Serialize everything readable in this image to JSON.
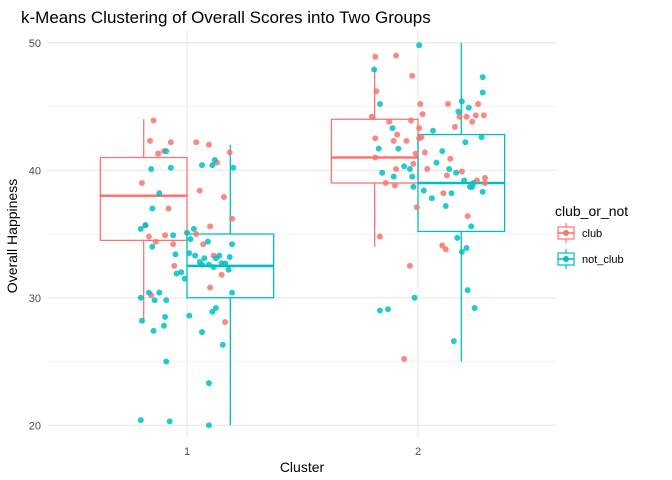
{
  "chart_data": {
    "type": "boxplot+jitter",
    "title": "k-Means Clustering of Overall Scores into Two Groups",
    "xlabel": "Cluster",
    "ylabel": "Overall Happiness",
    "categories": [
      "1",
      "2"
    ],
    "ylim": [
      19,
      51
    ],
    "yticks": [
      20,
      30,
      40,
      50
    ],
    "grid": true,
    "legend": {
      "title": "club_or_not",
      "position": "right",
      "entries": [
        "club",
        "not_club"
      ]
    },
    "colors": {
      "club": "#f8766d",
      "not_club": "#00bfc4"
    },
    "series": [
      {
        "name": "club",
        "boxes": [
          {
            "cluster": "1",
            "min": 28,
            "q1": 34.5,
            "median": 38,
            "q3": 41,
            "max": 44
          },
          {
            "cluster": "2",
            "min": 34,
            "q1": 39,
            "median": 41,
            "q3": 44,
            "max": 48
          }
        ],
        "points": [
          {
            "cluster": "1",
            "jitter": -0.39,
            "y": 39
          },
          {
            "cluster": "1",
            "jitter": -0.32,
            "y": 42.3
          },
          {
            "cluster": "1",
            "jitter": -0.29,
            "y": 43.9
          },
          {
            "cluster": "1",
            "jitter": -0.25,
            "y": 41.3
          },
          {
            "cluster": "1",
            "jitter": -0.2,
            "y": 41.5
          },
          {
            "cluster": "1",
            "jitter": -0.14,
            "y": 42.2
          },
          {
            "cluster": "1",
            "jitter": -0.36,
            "y": 35.7
          },
          {
            "cluster": "1",
            "jitter": -0.27,
            "y": 34.4
          },
          {
            "cluster": "1",
            "jitter": -0.12,
            "y": 34.2
          },
          {
            "cluster": "1",
            "jitter": -0.16,
            "y": 37
          },
          {
            "cluster": "1",
            "jitter": -0.33,
            "y": 34.8
          },
          {
            "cluster": "1",
            "jitter": -0.31,
            "y": 30.2
          },
          {
            "cluster": "1",
            "jitter": -0.19,
            "y": 34.9
          },
          {
            "cluster": "1",
            "jitter": -0.11,
            "y": 32.5
          },
          {
            "cluster": "1",
            "jitter": 0.08,
            "y": 42.2
          },
          {
            "cluster": "1",
            "jitter": 0.19,
            "y": 42
          },
          {
            "cluster": "1",
            "jitter": 0.11,
            "y": 38.4
          },
          {
            "cluster": "1",
            "jitter": 0.26,
            "y": 40.6
          },
          {
            "cluster": "1",
            "jitter": 0.37,
            "y": 41.4
          },
          {
            "cluster": "1",
            "jitter": 0.32,
            "y": 37.9
          },
          {
            "cluster": "1",
            "jitter": 0.39,
            "y": 36.2
          },
          {
            "cluster": "1",
            "jitter": 0.2,
            "y": 35.6
          },
          {
            "cluster": "1",
            "jitter": 0.14,
            "y": 34.2
          },
          {
            "cluster": "1",
            "jitter": 0.08,
            "y": 35
          },
          {
            "cluster": "1",
            "jitter": 0.23,
            "y": 33.3
          },
          {
            "cluster": "1",
            "jitter": 0.3,
            "y": 31.8
          },
          {
            "cluster": "1",
            "jitter": 0.2,
            "y": 30.8
          },
          {
            "cluster": "1",
            "jitter": 0.33,
            "y": 28.1
          },
          {
            "cluster": "2",
            "jitter": -0.37,
            "y": 41
          },
          {
            "cluster": "2",
            "jitter": -0.37,
            "y": 42.5
          },
          {
            "cluster": "2",
            "jitter": -0.4,
            "y": 44.2
          },
          {
            "cluster": "2",
            "jitter": -0.36,
            "y": 46.2
          },
          {
            "cluster": "2",
            "jitter": -0.37,
            "y": 48.9
          },
          {
            "cluster": "2",
            "jitter": -0.33,
            "y": 34.8
          },
          {
            "cluster": "2",
            "jitter": -0.28,
            "y": 39
          },
          {
            "cluster": "2",
            "jitter": -0.2,
            "y": 38.8
          },
          {
            "cluster": "2",
            "jitter": -0.25,
            "y": 43.8
          },
          {
            "cluster": "2",
            "jitter": -0.21,
            "y": 42.3
          },
          {
            "cluster": "2",
            "jitter": -0.18,
            "y": 42.8
          },
          {
            "cluster": "2",
            "jitter": -0.19,
            "y": 49
          },
          {
            "cluster": "2",
            "jitter": -0.05,
            "y": 47.4
          },
          {
            "cluster": "2",
            "jitter": -0.19,
            "y": 40.1
          },
          {
            "cluster": "2",
            "jitter": -0.1,
            "y": 42.3
          },
          {
            "cluster": "2",
            "jitter": -0.06,
            "y": 43.9
          },
          {
            "cluster": "2",
            "jitter": -0.01,
            "y": 37.1
          },
          {
            "cluster": "2",
            "jitter": -0.02,
            "y": 41.3
          },
          {
            "cluster": "2",
            "jitter": -0.04,
            "y": 40.5
          },
          {
            "cluster": "2",
            "jitter": 0.01,
            "y": 42.5
          },
          {
            "cluster": "2",
            "jitter": 0.02,
            "y": 45.2
          },
          {
            "cluster": "2",
            "jitter": 0.04,
            "y": 44.4
          },
          {
            "cluster": "2",
            "jitter": 0.01,
            "y": 43.3
          },
          {
            "cluster": "2",
            "jitter": 0.03,
            "y": 42.6
          },
          {
            "cluster": "2",
            "jitter": -0.12,
            "y": 25.2
          },
          {
            "cluster": "2",
            "jitter": -0.07,
            "y": 32.5
          },
          {
            "cluster": "2",
            "jitter": 0.06,
            "y": 41.4
          },
          {
            "cluster": "2",
            "jitter": 0.08,
            "y": 40.1
          },
          {
            "cluster": "2",
            "jitter": 0.21,
            "y": 34.1
          },
          {
            "cluster": "2",
            "jitter": 0.22,
            "y": 38.2
          },
          {
            "cluster": "2",
            "jitter": 0.25,
            "y": 39.6
          },
          {
            "cluster": "2",
            "jitter": 0.28,
            "y": 40.9
          },
          {
            "cluster": "2",
            "jitter": 0.32,
            "y": 43.4
          },
          {
            "cluster": "2",
            "jitter": 0.26,
            "y": 45.2
          },
          {
            "cluster": "2",
            "jitter": 0.36,
            "y": 44.2
          },
          {
            "cluster": "2",
            "jitter": 0.38,
            "y": 39.9
          },
          {
            "cluster": "2",
            "jitter": 0.24,
            "y": 33.8
          },
          {
            "cluster": "2",
            "jitter": 0.43,
            "y": 36.4
          },
          {
            "cluster": "2",
            "jitter": 0.51,
            "y": 39.2
          },
          {
            "cluster": "2",
            "jitter": 0.42,
            "y": 44.2
          },
          {
            "cluster": "2",
            "jitter": 0.47,
            "y": 43.8
          },
          {
            "cluster": "2",
            "jitter": 0.5,
            "y": 44.3
          },
          {
            "cluster": "2",
            "jitter": 0.52,
            "y": 45.2
          },
          {
            "cluster": "2",
            "jitter": 0.57,
            "y": 44.3
          },
          {
            "cluster": "2",
            "jitter": 0.58,
            "y": 39.4
          },
          {
            "cluster": "2",
            "jitter": 0.58,
            "y": 39
          }
        ]
      },
      {
        "name": "not_club",
        "boxes": [
          {
            "cluster": "1",
            "min": 20,
            "q1": 30,
            "median": 32.5,
            "q3": 35,
            "max": 42
          },
          {
            "cluster": "2",
            "min": 25,
            "q1": 35.2,
            "median": 39,
            "q3": 42.8,
            "max": 50
          }
        ],
        "points": [
          {
            "cluster": "1",
            "jitter": -0.4,
            "y": 35.4
          },
          {
            "cluster": "1",
            "jitter": -0.36,
            "y": 35.7
          },
          {
            "cluster": "1",
            "jitter": -0.3,
            "y": 34
          },
          {
            "cluster": "1",
            "jitter": -0.4,
            "y": 30
          },
          {
            "cluster": "1",
            "jitter": -0.33,
            "y": 30.4
          },
          {
            "cluster": "1",
            "jitter": -0.28,
            "y": 29.8
          },
          {
            "cluster": "1",
            "jitter": -0.24,
            "y": 30.4
          },
          {
            "cluster": "1",
            "jitter": -0.18,
            "y": 29.8
          },
          {
            "cluster": "1",
            "jitter": -0.39,
            "y": 28.2
          },
          {
            "cluster": "1",
            "jitter": -0.29,
            "y": 27.4
          },
          {
            "cluster": "1",
            "jitter": -0.2,
            "y": 27.8
          },
          {
            "cluster": "1",
            "jitter": -0.19,
            "y": 28.5
          },
          {
            "cluster": "1",
            "jitter": -0.4,
            "y": 20.4
          },
          {
            "cluster": "1",
            "jitter": -0.18,
            "y": 25
          },
          {
            "cluster": "1",
            "jitter": -0.15,
            "y": 20.3
          },
          {
            "cluster": "1",
            "jitter": -0.3,
            "y": 37
          },
          {
            "cluster": "1",
            "jitter": -0.24,
            "y": 38.2
          },
          {
            "cluster": "1",
            "jitter": -0.31,
            "y": 40.1
          },
          {
            "cluster": "1",
            "jitter": -0.18,
            "y": 41.5
          },
          {
            "cluster": "1",
            "jitter": -0.14,
            "y": 40.2
          },
          {
            "cluster": "1",
            "jitter": -0.1,
            "y": 33.4
          },
          {
            "cluster": "1",
            "jitter": -0.09,
            "y": 31.9
          },
          {
            "cluster": "1",
            "jitter": -0.12,
            "y": 34.9
          },
          {
            "cluster": "1",
            "jitter": -0.05,
            "y": 32
          },
          {
            "cluster": "1",
            "jitter": -0.02,
            "y": 31.5
          },
          {
            "cluster": "1",
            "jitter": 0.0,
            "y": 35.1
          },
          {
            "cluster": "1",
            "jitter": 0.03,
            "y": 34.6
          },
          {
            "cluster": "1",
            "jitter": 0.06,
            "y": 35.4
          },
          {
            "cluster": "1",
            "jitter": 0.02,
            "y": 33.5
          },
          {
            "cluster": "1",
            "jitter": 0.07,
            "y": 33.3
          },
          {
            "cluster": "1",
            "jitter": 0.11,
            "y": 32.8
          },
          {
            "cluster": "1",
            "jitter": 0.13,
            "y": 32.6
          },
          {
            "cluster": "1",
            "jitter": 0.15,
            "y": 33.1
          },
          {
            "cluster": "1",
            "jitter": 0.18,
            "y": 34.4
          },
          {
            "cluster": "1",
            "jitter": 0.19,
            "y": 32.6
          },
          {
            "cluster": "1",
            "jitter": 0.23,
            "y": 32.4
          },
          {
            "cluster": "1",
            "jitter": 0.25,
            "y": 33.1
          },
          {
            "cluster": "1",
            "jitter": 0.28,
            "y": 33.3
          },
          {
            "cluster": "1",
            "jitter": 0.3,
            "y": 32.7
          },
          {
            "cluster": "1",
            "jitter": 0.33,
            "y": 32.7
          },
          {
            "cluster": "1",
            "jitter": 0.36,
            "y": 32.2
          },
          {
            "cluster": "1",
            "jitter": 0.37,
            "y": 33.2
          },
          {
            "cluster": "1",
            "jitter": 0.39,
            "y": 34.2
          },
          {
            "cluster": "1",
            "jitter": 0.4,
            "y": 40.2
          },
          {
            "cluster": "1",
            "jitter": 0.39,
            "y": 30.4
          },
          {
            "cluster": "1",
            "jitter": 0.02,
            "y": 28.6
          },
          {
            "cluster": "1",
            "jitter": 0.13,
            "y": 27.3
          },
          {
            "cluster": "1",
            "jitter": 0.22,
            "y": 28.9
          },
          {
            "cluster": "1",
            "jitter": 0.25,
            "y": 29.2
          },
          {
            "cluster": "1",
            "jitter": 0.31,
            "y": 26.3
          },
          {
            "cluster": "1",
            "jitter": 0.19,
            "y": 23.3
          },
          {
            "cluster": "1",
            "jitter": 0.19,
            "y": 20
          },
          {
            "cluster": "1",
            "jitter": 0.13,
            "y": 40.4
          },
          {
            "cluster": "1",
            "jitter": 0.22,
            "y": 40.4
          },
          {
            "cluster": "1",
            "jitter": 0.24,
            "y": 40.8
          },
          {
            "cluster": "2",
            "jitter": -0.38,
            "y": 47.9
          },
          {
            "cluster": "2",
            "jitter": -0.33,
            "y": 45.2
          },
          {
            "cluster": "2",
            "jitter": -0.34,
            "y": 41.7
          },
          {
            "cluster": "2",
            "jitter": -0.31,
            "y": 39.8
          },
          {
            "cluster": "2",
            "jitter": -0.22,
            "y": 43.3
          },
          {
            "cluster": "2",
            "jitter": -0.17,
            "y": 41.7
          },
          {
            "cluster": "2",
            "jitter": -0.12,
            "y": 40.3
          },
          {
            "cluster": "2",
            "jitter": -0.07,
            "y": 40.1
          },
          {
            "cluster": "2",
            "jitter": -0.05,
            "y": 39.5
          },
          {
            "cluster": "2",
            "jitter": -0.04,
            "y": 38.7
          },
          {
            "cluster": "2",
            "jitter": -0.03,
            "y": 30
          },
          {
            "cluster": "2",
            "jitter": -0.26,
            "y": 29.1
          },
          {
            "cluster": "2",
            "jitter": -0.33,
            "y": 29
          },
          {
            "cluster": "2",
            "jitter": -0.21,
            "y": 39.5
          },
          {
            "cluster": "2",
            "jitter": 0.01,
            "y": 49.8
          },
          {
            "cluster": "2",
            "jitter": 0.05,
            "y": 38.4
          },
          {
            "cluster": "2",
            "jitter": 0.12,
            "y": 37.8
          },
          {
            "cluster": "2",
            "jitter": 0.13,
            "y": 43.1
          },
          {
            "cluster": "2",
            "jitter": 0.16,
            "y": 40.6
          },
          {
            "cluster": "2",
            "jitter": 0.21,
            "y": 41.5
          },
          {
            "cluster": "2",
            "jitter": 0.24,
            "y": 37.2
          },
          {
            "cluster": "2",
            "jitter": 0.29,
            "y": 38.2
          },
          {
            "cluster": "2",
            "jitter": 0.27,
            "y": 40.1
          },
          {
            "cluster": "2",
            "jitter": 0.33,
            "y": 39.8
          },
          {
            "cluster": "2",
            "jitter": 0.35,
            "y": 44.6
          },
          {
            "cluster": "2",
            "jitter": 0.38,
            "y": 45.4
          },
          {
            "cluster": "2",
            "jitter": 0.4,
            "y": 39.2
          },
          {
            "cluster": "2",
            "jitter": 0.41,
            "y": 42.2
          },
          {
            "cluster": "2",
            "jitter": 0.44,
            "y": 44.9
          },
          {
            "cluster": "2",
            "jitter": 0.47,
            "y": 38.7
          },
          {
            "cluster": "2",
            "jitter": 0.45,
            "y": 38.7
          },
          {
            "cluster": "2",
            "jitter": 0.34,
            "y": 34.7
          },
          {
            "cluster": "2",
            "jitter": 0.31,
            "y": 26.6
          },
          {
            "cluster": "2",
            "jitter": 0.38,
            "y": 33.6
          },
          {
            "cluster": "2",
            "jitter": 0.43,
            "y": 30.6
          },
          {
            "cluster": "2",
            "jitter": 0.42,
            "y": 33.9
          },
          {
            "cluster": "2",
            "jitter": 0.49,
            "y": 29.2
          },
          {
            "cluster": "2",
            "jitter": 0.46,
            "y": 35.6
          },
          {
            "cluster": "2",
            "jitter": 0.56,
            "y": 38.3
          },
          {
            "cluster": "2",
            "jitter": 0.55,
            "y": 42.6
          },
          {
            "cluster": "2",
            "jitter": 0.56,
            "y": 46.1
          },
          {
            "cluster": "2",
            "jitter": 0.56,
            "y": 47.3
          },
          {
            "cluster": "2",
            "jitter": 0.48,
            "y": 39
          }
        ]
      }
    ]
  }
}
